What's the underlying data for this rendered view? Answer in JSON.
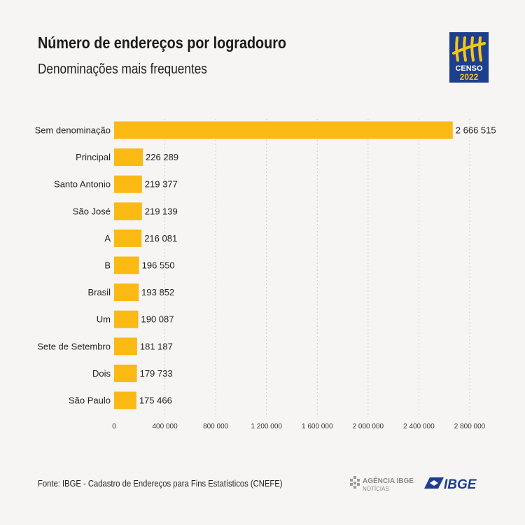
{
  "header": {
    "title": "Número de endereços por logradouro",
    "subtitle": "Denominações mais frequentes"
  },
  "logo": {
    "line1": "CENSO",
    "line2": "2022",
    "icon": "tally-marks-icon"
  },
  "footer": {
    "source": "Fonte: IBGE - Cadastro de Endereços para Fins Estatísticos (CNEFE)",
    "agencia_line1": "AGÊNCIA IBGE",
    "agencia_line2": "NOTÍCIAS",
    "ibge": "IBGE"
  },
  "colors": {
    "bar": "#fbb914",
    "grid": "#cfcfcf",
    "brand_blue": "#1d3f8e"
  },
  "chart_data": {
    "type": "bar",
    "orientation": "horizontal",
    "categories": [
      "Sem denominação",
      "Principal",
      "Santo Antonio",
      "São José",
      "A",
      "B",
      "Brasil",
      "Um",
      "Sete  de Setembro",
      "Dois",
      "São Paulo"
    ],
    "values": [
      2666515,
      226289,
      219377,
      219139,
      216081,
      196550,
      193852,
      190087,
      181187,
      179733,
      175466
    ],
    "value_labels": [
      "2 666 515",
      "226 289",
      "219 377",
      "219 139",
      "216 081",
      "196 550",
      "193 852",
      "190 087",
      "181 187",
      "179 733",
      "175 466"
    ],
    "xlim": [
      0,
      2800000
    ],
    "xticks": [
      0,
      400000,
      800000,
      1200000,
      1600000,
      2000000,
      2400000,
      2800000
    ],
    "xtick_labels": [
      "0",
      "400 000",
      "800 000",
      "1 200 000",
      "1 600 000",
      "2 000 000",
      "2 400 000",
      "2 800 000"
    ],
    "grid": true
  }
}
